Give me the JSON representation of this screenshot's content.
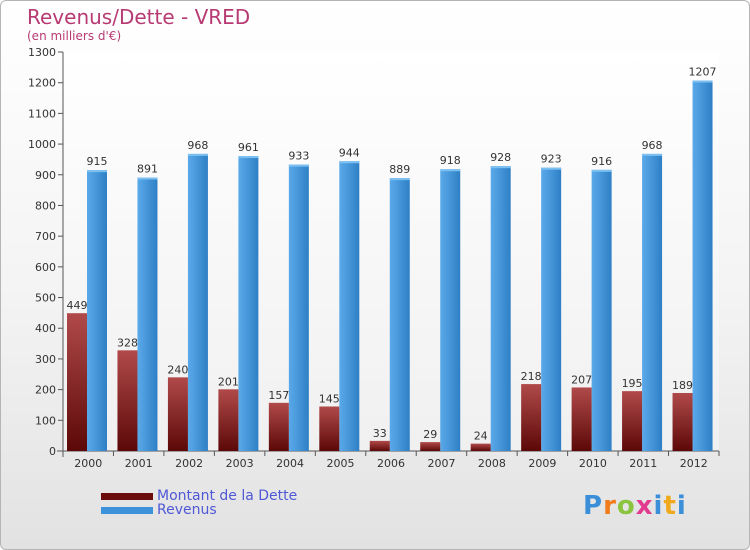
{
  "title": "Revenus/Dette - VRED",
  "subtitle": "(en milliers d'€)",
  "brand": "Proxiti",
  "colors": {
    "debt": "#6b0b0b",
    "debt_light": "#b14a4a",
    "revenue": "#2f7fc6",
    "revenue_light": "#5aaaea",
    "title": "#b83a73",
    "legend_text": "#4f58d6"
  },
  "chart_data": {
    "type": "bar",
    "title": "Revenus/Dette - VRED",
    "subtitle": "(en milliers d'€)",
    "categories": [
      "2000",
      "2001",
      "2002",
      "2003",
      "2004",
      "2005",
      "2006",
      "2007",
      "2008",
      "2009",
      "2010",
      "2011",
      "2012"
    ],
    "series": [
      {
        "name": "Montant de la Dette",
        "values": [
          449,
          328,
          240,
          201,
          157,
          145,
          33,
          29,
          24,
          218,
          207,
          195,
          189
        ]
      },
      {
        "name": "Revenus",
        "values": [
          915,
          891,
          968,
          961,
          933,
          944,
          889,
          918,
          928,
          923,
          916,
          968,
          1207
        ]
      }
    ],
    "ylim": [
      0,
      1300
    ],
    "yticks": [
      0,
      100,
      200,
      300,
      400,
      500,
      600,
      700,
      800,
      900,
      1000,
      1100,
      1200,
      1300
    ],
    "grid": false,
    "legend_position": "bottom-left"
  }
}
